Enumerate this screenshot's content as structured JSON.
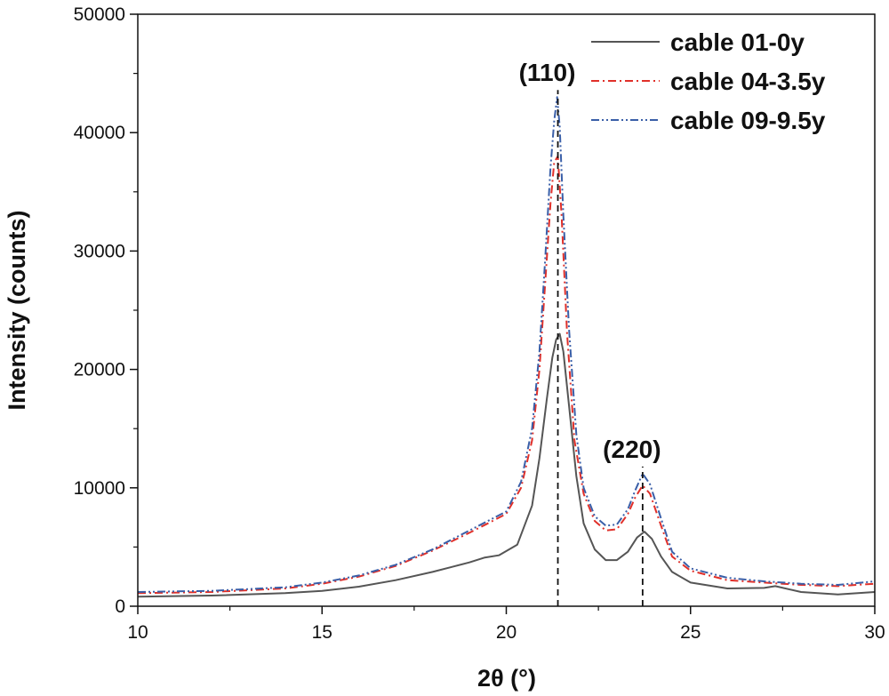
{
  "chart_data": {
    "type": "line",
    "title": "",
    "xlabel": "2θ (°)",
    "ylabel": "Intensity (counts)",
    "xlim": [
      10,
      30
    ],
    "ylim": [
      0,
      50000
    ],
    "xticks": [
      10,
      15,
      20,
      25,
      30
    ],
    "yticks": [
      0,
      10000,
      20000,
      30000,
      40000,
      50000
    ],
    "grid": false,
    "legend_position": "top-right",
    "series": [
      {
        "name": "cable 01-0y",
        "color": "#555555",
        "dash": "solid",
        "x": [
          10,
          12,
          14,
          15,
          16,
          17,
          18,
          19,
          19.4,
          19.8,
          20.3,
          20.7,
          20.9,
          21.1,
          21.25,
          21.35,
          21.45,
          21.55,
          21.7,
          21.9,
          22.1,
          22.4,
          22.7,
          23.0,
          23.3,
          23.55,
          23.75,
          23.95,
          24.2,
          24.5,
          25,
          26,
          27,
          27.3,
          28,
          29,
          30
        ],
        "y": [
          800,
          900,
          1100,
          1300,
          1650,
          2200,
          2900,
          3700,
          4100,
          4300,
          5200,
          8500,
          12500,
          17500,
          21000,
          22500,
          23000,
          21500,
          17000,
          11000,
          7000,
          4800,
          3900,
          3900,
          4600,
          5800,
          6300,
          5700,
          4200,
          2900,
          2000,
          1500,
          1550,
          1700,
          1200,
          1000,
          1200
        ]
      },
      {
        "name": "cable 04-3.5y",
        "color": "#e0302a",
        "dash": "dashdot",
        "x": [
          10,
          12,
          14,
          15,
          16,
          17,
          18,
          19,
          19.5,
          20,
          20.4,
          20.7,
          20.9,
          21.05,
          21.2,
          21.3,
          21.4,
          21.5,
          21.65,
          21.85,
          22.1,
          22.4,
          22.7,
          23.0,
          23.3,
          23.5,
          23.7,
          23.9,
          24.2,
          24.5,
          25,
          26,
          27,
          28,
          29,
          30
        ],
        "y": [
          1100,
          1200,
          1500,
          1900,
          2500,
          3400,
          4700,
          6200,
          7000,
          7800,
          10000,
          14000,
          20000,
          27000,
          34000,
          37500,
          38000,
          33000,
          23000,
          14000,
          9500,
          7200,
          6400,
          6500,
          7800,
          9200,
          10200,
          9500,
          6800,
          4200,
          3000,
          2200,
          2000,
          1800,
          1700,
          1900
        ]
      },
      {
        "name": "cable 09-9.5y",
        "color": "#3a5fa8",
        "dash": "dashdotdot",
        "x": [
          10,
          12,
          14,
          15,
          16,
          17,
          18,
          19,
          19.5,
          20,
          20.4,
          20.7,
          20.9,
          21.05,
          21.2,
          21.3,
          21.38,
          21.45,
          21.55,
          21.7,
          21.9,
          22.1,
          22.4,
          22.7,
          23.0,
          23.3,
          23.5,
          23.7,
          23.9,
          24.2,
          24.5,
          25,
          26,
          27,
          28,
          29,
          30
        ],
        "y": [
          1200,
          1300,
          1600,
          2000,
          2600,
          3500,
          4800,
          6400,
          7200,
          8000,
          10500,
          15000,
          21500,
          29000,
          37000,
          41000,
          43000,
          40500,
          33000,
          23500,
          14500,
          10000,
          7600,
          6800,
          6900,
          8200,
          9800,
          11200,
          10300,
          7400,
          4600,
          3200,
          2400,
          2100,
          1900,
          1800,
          2100
        ]
      }
    ],
    "annotations": [
      {
        "label": "(110)",
        "x": 21.4
      },
      {
        "label": "(220)",
        "x": 23.7
      }
    ]
  }
}
